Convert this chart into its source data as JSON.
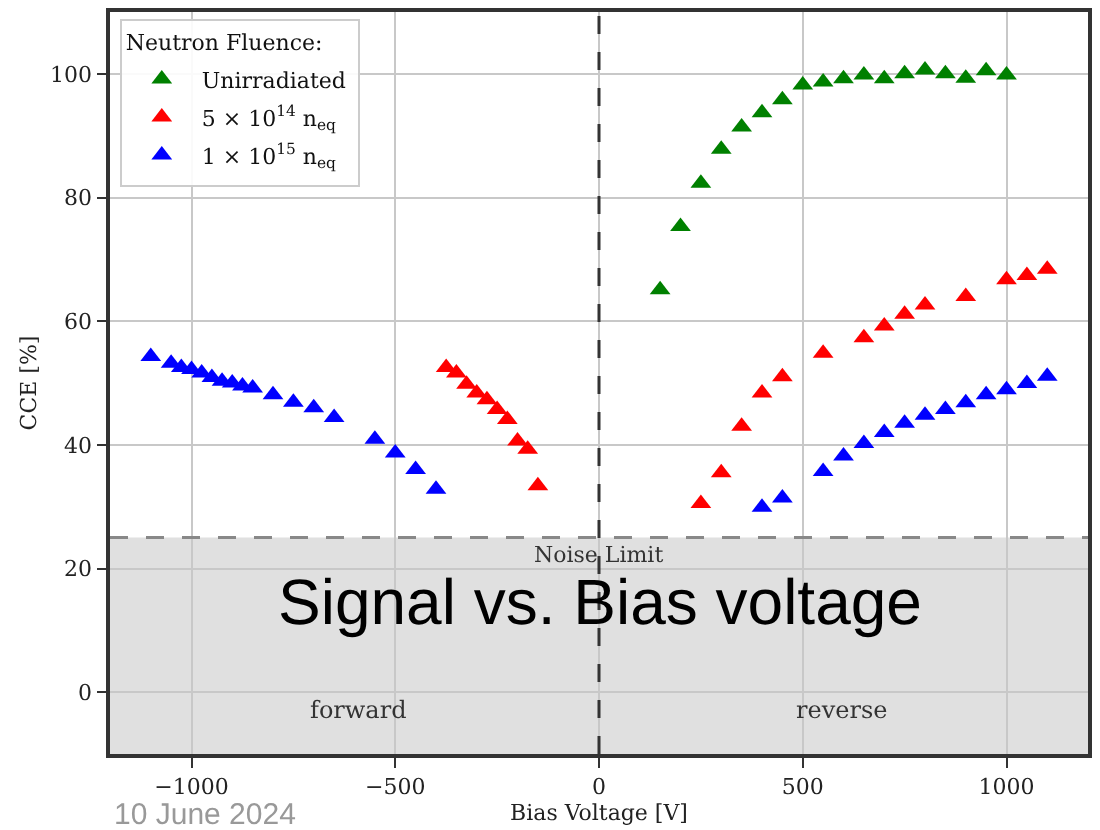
{
  "chart_data": {
    "type": "scatter",
    "title": "Signal vs. Bias voltage",
    "xlabel": "Bias Voltage [V]",
    "ylabel": "CCE [%]",
    "legend_title": "Neutron Fluence:",
    "xlim": [
      -1200,
      1200
    ],
    "ylim": [
      -10,
      110
    ],
    "xticks": [
      {
        "value": -1000,
        "label": "−1000"
      },
      {
        "value": -500,
        "label": "−500"
      },
      0,
      500,
      1000
    ],
    "yticks": [
      0,
      20,
      40,
      60,
      80,
      100
    ],
    "grid": true,
    "legend": "top left",
    "marker": "triangle",
    "series": [
      {
        "name": "Unirradiated",
        "color": "#008000",
        "x": [
          150,
          200,
          250,
          300,
          350,
          400,
          450,
          500,
          550,
          600,
          650,
          700,
          750,
          800,
          850,
          900,
          950,
          1000
        ],
        "values": [
          65.1,
          75.3,
          82.3,
          87.8,
          91.4,
          93.7,
          95.8,
          98.2,
          98.7,
          99.2,
          99.8,
          99.2,
          100,
          100.6,
          100,
          99.3,
          100.5,
          99.8
        ]
      },
      {
        "name": "5 × 10$^{14}$ n$_{eq}$",
        "color": "#ff0000",
        "x": [
          -375,
          -350,
          -325,
          -300,
          -275,
          -250,
          -225,
          -200,
          -175,
          -150,
          250,
          300,
          350,
          400,
          450,
          550,
          650,
          700,
          750,
          800,
          900,
          1000,
          1050,
          1100
        ],
        "values": [
          52.5,
          51.6,
          49.8,
          48.4,
          47.3,
          45.7,
          44.1,
          40.6,
          39.3,
          33.4,
          30.5,
          35.5,
          43.0,
          48.4,
          51.0,
          54.8,
          57.3,
          59.2,
          61.1,
          62.6,
          64.0,
          66.7,
          67.4,
          68.4
        ]
      },
      {
        "name": "1 × 10$^{15}$ n$_{eq}$",
        "color": "#0000ff",
        "x": [
          -1100,
          -1050,
          -1025,
          -1000,
          -975,
          -950,
          -925,
          -900,
          -875,
          -850,
          -800,
          -750,
          -700,
          -650,
          -550,
          -500,
          -450,
          -400,
          400,
          450,
          550,
          600,
          650,
          700,
          750,
          800,
          850,
          900,
          950,
          1000,
          1050,
          1100
        ],
        "values": [
          54.3,
          53.2,
          52.5,
          52.2,
          51.6,
          50.9,
          50.3,
          50.0,
          49.5,
          49.2,
          48.1,
          46.9,
          46.0,
          44.4,
          40.9,
          38.7,
          36.0,
          32.8,
          29.9,
          31.4,
          35.7,
          38.2,
          40.2,
          42.0,
          43.5,
          44.8,
          45.7,
          46.8,
          48.1,
          48.9,
          49.9,
          51.1
        ]
      }
    ],
    "ref_lines": [
      {
        "axis": "x",
        "value": 0,
        "color": "#333333",
        "line_style": "dashed"
      },
      {
        "axis": "y",
        "value": 25,
        "label": "Noise Limit",
        "color": "#888888",
        "line_style": "dashed"
      }
    ],
    "bands": [
      {
        "axis": "y",
        "from": -10,
        "to": 25,
        "color": "#e0e0e0"
      }
    ],
    "annotations": [
      "forward",
      "reverse",
      "10 June 2024"
    ]
  }
}
